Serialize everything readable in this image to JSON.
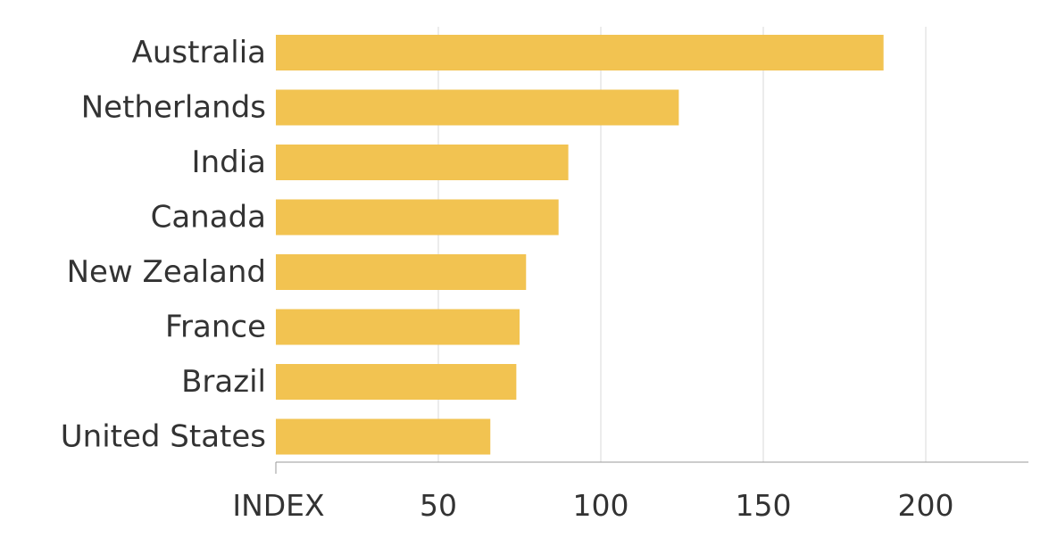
{
  "chart_data": {
    "type": "bar",
    "orientation": "horizontal",
    "categories": [
      "Australia",
      "Netherlands",
      "India",
      "Canada",
      "New Zealand",
      "France",
      "Brazil",
      "United States"
    ],
    "values": [
      187,
      124,
      90,
      87,
      77,
      75,
      74,
      66
    ],
    "xlabel": "INDEX",
    "ylabel": "",
    "title": "",
    "xlim": [
      0,
      231
    ],
    "x_ticks": [
      50,
      100,
      150,
      200
    ],
    "x_tick_labels": [
      "50",
      "100",
      "150",
      "200"
    ],
    "grid": "vertical",
    "legend": "none",
    "colors": {
      "bar": "#f2c351",
      "grid": "#d9d9d9",
      "axis": "#999999",
      "text": "#333333"
    }
  }
}
